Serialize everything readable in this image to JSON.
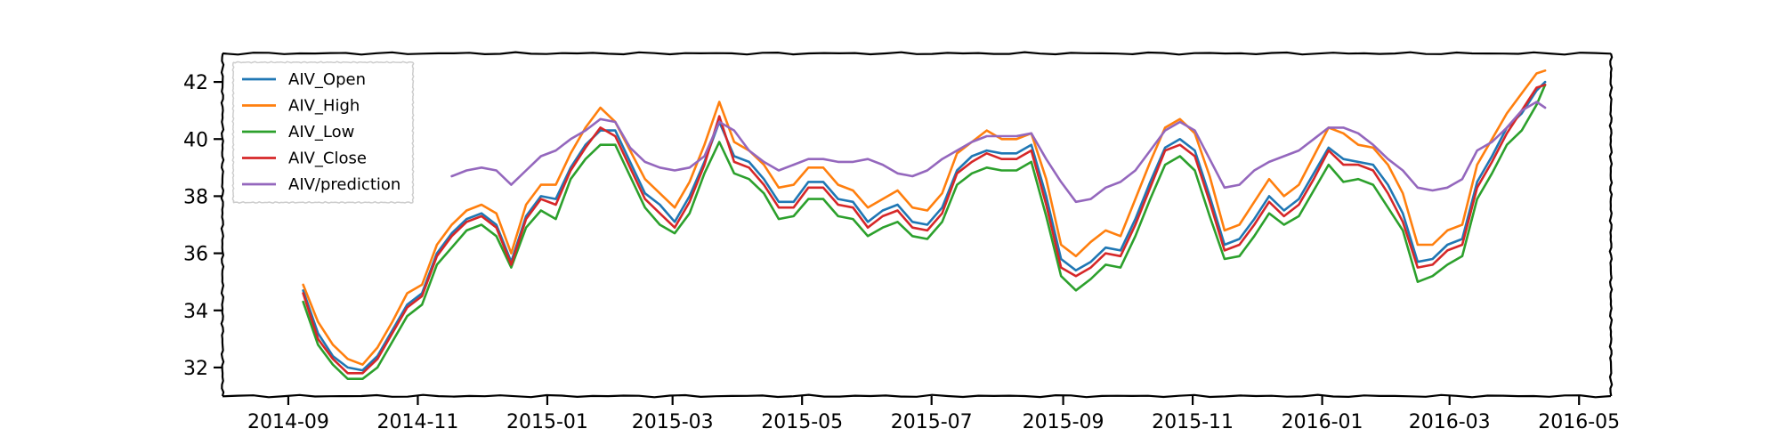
{
  "chart_data": {
    "type": "line",
    "title": "",
    "xlabel": "",
    "ylabel": "",
    "x_ticks": [
      "2014-09",
      "2014-11",
      "2015-01",
      "2015-03",
      "2015-05",
      "2015-07",
      "2015-09",
      "2015-11",
      "2016-01",
      "2016-03",
      "2016-05"
    ],
    "y_ticks": [
      32,
      34,
      36,
      38,
      40,
      42
    ],
    "xlim": [
      "2014-08-01",
      "2016-05-16"
    ],
    "ylim": [
      31.0,
      43.0
    ],
    "grid": false,
    "legend_position": "upper-left",
    "series": [
      {
        "name": "AIV_Open",
        "color": "#1f77b4",
        "x": [
          "2014-09-08",
          "2014-09-15",
          "2014-09-22",
          "2014-09-29",
          "2014-10-06",
          "2014-10-13",
          "2014-10-20",
          "2014-10-27",
          "2014-11-03",
          "2014-11-10",
          "2014-11-17",
          "2014-11-24",
          "2014-12-01",
          "2014-12-08",
          "2014-12-15",
          "2014-12-22",
          "2014-12-29",
          "2015-01-05",
          "2015-01-12",
          "2015-01-19",
          "2015-01-26",
          "2015-02-02",
          "2015-02-09",
          "2015-02-16",
          "2015-02-23",
          "2015-03-02",
          "2015-03-09",
          "2015-03-16",
          "2015-03-23",
          "2015-03-30",
          "2015-04-06",
          "2015-04-13",
          "2015-04-20",
          "2015-04-27",
          "2015-05-04",
          "2015-05-11",
          "2015-05-18",
          "2015-05-25",
          "2015-06-01",
          "2015-06-08",
          "2015-06-15",
          "2015-06-22",
          "2015-06-29",
          "2015-07-06",
          "2015-07-13",
          "2015-07-20",
          "2015-07-27",
          "2015-08-03",
          "2015-08-10",
          "2015-08-17",
          "2015-08-24",
          "2015-08-31",
          "2015-09-07",
          "2015-09-14",
          "2015-09-21",
          "2015-09-28",
          "2015-10-05",
          "2015-10-12",
          "2015-10-19",
          "2015-10-26",
          "2015-11-02",
          "2015-11-09",
          "2015-11-16",
          "2015-11-23",
          "2015-11-30",
          "2015-12-07",
          "2015-12-14",
          "2015-12-21",
          "2015-12-28",
          "2016-01-04",
          "2016-01-11",
          "2016-01-18",
          "2016-01-25",
          "2016-02-01",
          "2016-02-08",
          "2016-02-15",
          "2016-02-22",
          "2016-02-29",
          "2016-03-07",
          "2016-03-14",
          "2016-03-21",
          "2016-03-28",
          "2016-04-04",
          "2016-04-11",
          "2016-04-15"
        ],
        "y": [
          34.7,
          33.2,
          32.4,
          32.0,
          31.9,
          32.4,
          33.3,
          34.2,
          34.6,
          36.0,
          36.7,
          37.2,
          37.4,
          37.0,
          35.7,
          37.3,
          38.0,
          37.9,
          39.0,
          39.8,
          40.3,
          40.3,
          39.2,
          38.1,
          37.7,
          37.1,
          38.0,
          39.2,
          40.6,
          39.4,
          39.2,
          38.6,
          37.8,
          37.8,
          38.5,
          38.5,
          37.9,
          37.8,
          37.1,
          37.5,
          37.7,
          37.1,
          37.0,
          37.6,
          38.9,
          39.4,
          39.6,
          39.5,
          39.5,
          39.8,
          38.0,
          35.8,
          35.4,
          35.7,
          36.2,
          36.1,
          37.2,
          38.5,
          39.7,
          40.0,
          39.6,
          38.0,
          36.3,
          36.5,
          37.2,
          38.0,
          37.5,
          37.9,
          38.8,
          39.7,
          39.3,
          39.2,
          39.1,
          38.4,
          37.4,
          35.7,
          35.8,
          36.3,
          36.5,
          38.5,
          39.4,
          40.4,
          40.9,
          41.7,
          42.0
        ]
      },
      {
        "name": "AIV_High",
        "color": "#ff7f0e",
        "x": [
          "2014-09-08",
          "2014-09-15",
          "2014-09-22",
          "2014-09-29",
          "2014-10-06",
          "2014-10-13",
          "2014-10-20",
          "2014-10-27",
          "2014-11-03",
          "2014-11-10",
          "2014-11-17",
          "2014-11-24",
          "2014-12-01",
          "2014-12-08",
          "2014-12-15",
          "2014-12-22",
          "2014-12-29",
          "2015-01-05",
          "2015-01-12",
          "2015-01-19",
          "2015-01-26",
          "2015-02-02",
          "2015-02-09",
          "2015-02-16",
          "2015-02-23",
          "2015-03-02",
          "2015-03-09",
          "2015-03-16",
          "2015-03-23",
          "2015-03-30",
          "2015-04-06",
          "2015-04-13",
          "2015-04-20",
          "2015-04-27",
          "2015-05-04",
          "2015-05-11",
          "2015-05-18",
          "2015-05-25",
          "2015-06-01",
          "2015-06-08",
          "2015-06-15",
          "2015-06-22",
          "2015-06-29",
          "2015-07-06",
          "2015-07-13",
          "2015-07-20",
          "2015-07-27",
          "2015-08-03",
          "2015-08-10",
          "2015-08-17",
          "2015-08-24",
          "2015-08-31",
          "2015-09-07",
          "2015-09-14",
          "2015-09-21",
          "2015-09-28",
          "2015-10-05",
          "2015-10-12",
          "2015-10-19",
          "2015-10-26",
          "2015-11-02",
          "2015-11-09",
          "2015-11-16",
          "2015-11-23",
          "2015-11-30",
          "2015-12-07",
          "2015-12-14",
          "2015-12-21",
          "2015-12-28",
          "2016-01-04",
          "2016-01-11",
          "2016-01-18",
          "2016-01-25",
          "2016-02-01",
          "2016-02-08",
          "2016-02-15",
          "2016-02-22",
          "2016-02-29",
          "2016-03-07",
          "2016-03-14",
          "2016-03-21",
          "2016-03-28",
          "2016-04-04",
          "2016-04-11",
          "2016-04-15"
        ],
        "y": [
          34.9,
          33.6,
          32.8,
          32.3,
          32.1,
          32.7,
          33.6,
          34.6,
          34.9,
          36.3,
          37.0,
          37.5,
          37.7,
          37.4,
          36.0,
          37.7,
          38.4,
          38.4,
          39.5,
          40.4,
          41.1,
          40.6,
          39.6,
          38.6,
          38.1,
          37.6,
          38.5,
          39.8,
          41.3,
          39.9,
          39.6,
          39.1,
          38.3,
          38.4,
          39.0,
          39.0,
          38.4,
          38.2,
          37.6,
          37.9,
          38.2,
          37.6,
          37.5,
          38.1,
          39.5,
          39.9,
          40.3,
          40.0,
          40.0,
          40.2,
          38.6,
          36.3,
          35.9,
          36.4,
          36.8,
          36.6,
          37.9,
          39.2,
          40.4,
          40.7,
          40.2,
          38.7,
          36.8,
          37.0,
          37.8,
          38.6,
          38.0,
          38.4,
          39.4,
          40.4,
          40.2,
          39.8,
          39.7,
          39.1,
          38.1,
          36.3,
          36.3,
          36.8,
          37.0,
          39.1,
          40.0,
          40.9,
          41.6,
          42.3,
          42.4
        ]
      },
      {
        "name": "AIV_Low",
        "color": "#2ca02c",
        "x": [
          "2014-09-08",
          "2014-09-15",
          "2014-09-22",
          "2014-09-29",
          "2014-10-06",
          "2014-10-13",
          "2014-10-20",
          "2014-10-27",
          "2014-11-03",
          "2014-11-10",
          "2014-11-17",
          "2014-11-24",
          "2014-12-01",
          "2014-12-08",
          "2014-12-15",
          "2014-12-22",
          "2014-12-29",
          "2015-01-05",
          "2015-01-12",
          "2015-01-19",
          "2015-01-26",
          "2015-02-02",
          "2015-02-09",
          "2015-02-16",
          "2015-02-23",
          "2015-03-02",
          "2015-03-09",
          "2015-03-16",
          "2015-03-23",
          "2015-03-30",
          "2015-04-06",
          "2015-04-13",
          "2015-04-20",
          "2015-04-27",
          "2015-05-04",
          "2015-05-11",
          "2015-05-18",
          "2015-05-25",
          "2015-06-01",
          "2015-06-08",
          "2015-06-15",
          "2015-06-22",
          "2015-06-29",
          "2015-07-06",
          "2015-07-13",
          "2015-07-20",
          "2015-07-27",
          "2015-08-03",
          "2015-08-10",
          "2015-08-17",
          "2015-08-24",
          "2015-08-31",
          "2015-09-07",
          "2015-09-14",
          "2015-09-21",
          "2015-09-28",
          "2015-10-05",
          "2015-10-12",
          "2015-10-19",
          "2015-10-26",
          "2015-11-02",
          "2015-11-09",
          "2015-11-16",
          "2015-11-23",
          "2015-11-30",
          "2015-12-07",
          "2015-12-14",
          "2015-12-21",
          "2015-12-28",
          "2016-01-04",
          "2016-01-11",
          "2016-01-18",
          "2016-01-25",
          "2016-02-01",
          "2016-02-08",
          "2016-02-15",
          "2016-02-22",
          "2016-02-29",
          "2016-03-07",
          "2016-03-14",
          "2016-03-21",
          "2016-03-28",
          "2016-04-04",
          "2016-04-11",
          "2016-04-15"
        ],
        "y": [
          34.3,
          32.8,
          32.1,
          31.6,
          31.6,
          32.0,
          32.9,
          33.8,
          34.2,
          35.6,
          36.2,
          36.8,
          37.0,
          36.6,
          35.5,
          36.9,
          37.5,
          37.2,
          38.6,
          39.3,
          39.8,
          39.8,
          38.7,
          37.6,
          37.0,
          36.7,
          37.4,
          38.8,
          39.9,
          38.8,
          38.6,
          38.1,
          37.2,
          37.3,
          37.9,
          37.9,
          37.3,
          37.2,
          36.6,
          36.9,
          37.1,
          36.6,
          36.5,
          37.1,
          38.4,
          38.8,
          39.0,
          38.9,
          38.9,
          39.2,
          37.3,
          35.2,
          34.7,
          35.1,
          35.6,
          35.5,
          36.6,
          37.9,
          39.1,
          39.4,
          38.9,
          37.3,
          35.8,
          35.9,
          36.6,
          37.4,
          37.0,
          37.3,
          38.2,
          39.1,
          38.5,
          38.6,
          38.4,
          37.6,
          36.8,
          35.0,
          35.2,
          35.6,
          35.9,
          37.9,
          38.8,
          39.8,
          40.3,
          41.2,
          41.9
        ]
      },
      {
        "name": "AIV_Close",
        "color": "#d62728",
        "x": [
          "2014-09-08",
          "2014-09-15",
          "2014-09-22",
          "2014-09-29",
          "2014-10-06",
          "2014-10-13",
          "2014-10-20",
          "2014-10-27",
          "2014-11-03",
          "2014-11-10",
          "2014-11-17",
          "2014-11-24",
          "2014-12-01",
          "2014-12-08",
          "2014-12-15",
          "2014-12-22",
          "2014-12-29",
          "2015-01-05",
          "2015-01-12",
          "2015-01-19",
          "2015-01-26",
          "2015-02-02",
          "2015-02-09",
          "2015-02-16",
          "2015-02-23",
          "2015-03-02",
          "2015-03-09",
          "2015-03-16",
          "2015-03-23",
          "2015-03-30",
          "2015-04-06",
          "2015-04-13",
          "2015-04-20",
          "2015-04-27",
          "2015-05-04",
          "2015-05-11",
          "2015-05-18",
          "2015-05-25",
          "2015-06-01",
          "2015-06-08",
          "2015-06-15",
          "2015-06-22",
          "2015-06-29",
          "2015-07-06",
          "2015-07-13",
          "2015-07-20",
          "2015-07-27",
          "2015-08-03",
          "2015-08-10",
          "2015-08-17",
          "2015-08-24",
          "2015-08-31",
          "2015-09-07",
          "2015-09-14",
          "2015-09-21",
          "2015-09-28",
          "2015-10-05",
          "2015-10-12",
          "2015-10-19",
          "2015-10-26",
          "2015-11-02",
          "2015-11-09",
          "2015-11-16",
          "2015-11-23",
          "2015-11-30",
          "2015-12-07",
          "2015-12-14",
          "2015-12-21",
          "2015-12-28",
          "2016-01-04",
          "2016-01-11",
          "2016-01-18",
          "2016-01-25",
          "2016-02-01",
          "2016-02-08",
          "2016-02-15",
          "2016-02-22",
          "2016-02-29",
          "2016-03-07",
          "2016-03-14",
          "2016-03-21",
          "2016-03-28",
          "2016-04-04",
          "2016-04-11",
          "2016-04-15"
        ],
        "y": [
          34.6,
          33.0,
          32.3,
          31.8,
          31.8,
          32.3,
          33.2,
          34.1,
          34.5,
          35.9,
          36.6,
          37.1,
          37.3,
          36.9,
          35.6,
          37.2,
          37.9,
          37.7,
          38.9,
          39.7,
          40.4,
          40.1,
          39.0,
          37.9,
          37.4,
          36.9,
          37.8,
          39.1,
          40.8,
          39.2,
          39.0,
          38.4,
          37.6,
          37.6,
          38.3,
          38.3,
          37.7,
          37.6,
          36.9,
          37.3,
          37.5,
          36.9,
          36.8,
          37.4,
          38.8,
          39.2,
          39.5,
          39.3,
          39.3,
          39.6,
          37.7,
          35.5,
          35.2,
          35.5,
          36.0,
          35.9,
          37.0,
          38.3,
          39.6,
          39.8,
          39.4,
          37.8,
          36.1,
          36.3,
          37.0,
          37.8,
          37.3,
          37.7,
          38.6,
          39.6,
          39.1,
          39.1,
          38.9,
          38.1,
          37.1,
          35.5,
          35.6,
          36.1,
          36.3,
          38.3,
          39.2,
          40.2,
          41.0,
          41.8,
          41.9
        ]
      },
      {
        "name": "AIV/prediction",
        "color": "#9467bd",
        "x": [
          "2014-11-17",
          "2014-11-24",
          "2014-12-01",
          "2014-12-08",
          "2014-12-15",
          "2014-12-22",
          "2014-12-29",
          "2015-01-05",
          "2015-01-12",
          "2015-01-19",
          "2015-01-26",
          "2015-02-02",
          "2015-02-09",
          "2015-02-16",
          "2015-02-23",
          "2015-03-02",
          "2015-03-09",
          "2015-03-16",
          "2015-03-23",
          "2015-03-30",
          "2015-04-06",
          "2015-04-13",
          "2015-04-20",
          "2015-04-27",
          "2015-05-04",
          "2015-05-11",
          "2015-05-18",
          "2015-05-25",
          "2015-06-01",
          "2015-06-08",
          "2015-06-15",
          "2015-06-22",
          "2015-06-29",
          "2015-07-06",
          "2015-07-13",
          "2015-07-20",
          "2015-07-27",
          "2015-08-03",
          "2015-08-10",
          "2015-08-17",
          "2015-08-24",
          "2015-08-31",
          "2015-09-07",
          "2015-09-14",
          "2015-09-21",
          "2015-09-28",
          "2015-10-05",
          "2015-10-12",
          "2015-10-19",
          "2015-10-26",
          "2015-11-02",
          "2015-11-09",
          "2015-11-16",
          "2015-11-23",
          "2015-11-30",
          "2015-12-07",
          "2015-12-14",
          "2015-12-21",
          "2015-12-28",
          "2016-01-04",
          "2016-01-11",
          "2016-01-18",
          "2016-01-25",
          "2016-02-01",
          "2016-02-08",
          "2016-02-15",
          "2016-02-22",
          "2016-02-29",
          "2016-03-07",
          "2016-03-14",
          "2016-03-21",
          "2016-03-28",
          "2016-04-04",
          "2016-04-11",
          "2016-04-15"
        ],
        "y": [
          38.7,
          38.9,
          39.0,
          38.9,
          38.4,
          38.9,
          39.4,
          39.6,
          40.0,
          40.3,
          40.7,
          40.6,
          39.7,
          39.2,
          39.0,
          38.9,
          39.0,
          39.4,
          40.6,
          40.3,
          39.6,
          39.2,
          38.9,
          39.1,
          39.3,
          39.3,
          39.2,
          39.2,
          39.3,
          39.1,
          38.8,
          38.7,
          38.9,
          39.3,
          39.6,
          39.9,
          40.1,
          40.1,
          40.1,
          40.2,
          39.3,
          38.5,
          37.8,
          37.9,
          38.3,
          38.5,
          38.9,
          39.6,
          40.3,
          40.6,
          40.3,
          39.3,
          38.3,
          38.4,
          38.9,
          39.2,
          39.4,
          39.6,
          40.0,
          40.4,
          40.4,
          40.2,
          39.8,
          39.3,
          38.9,
          38.3,
          38.2,
          38.3,
          38.6,
          39.6,
          39.9,
          40.4,
          41.0,
          41.3,
          41.1
        ]
      }
    ]
  }
}
